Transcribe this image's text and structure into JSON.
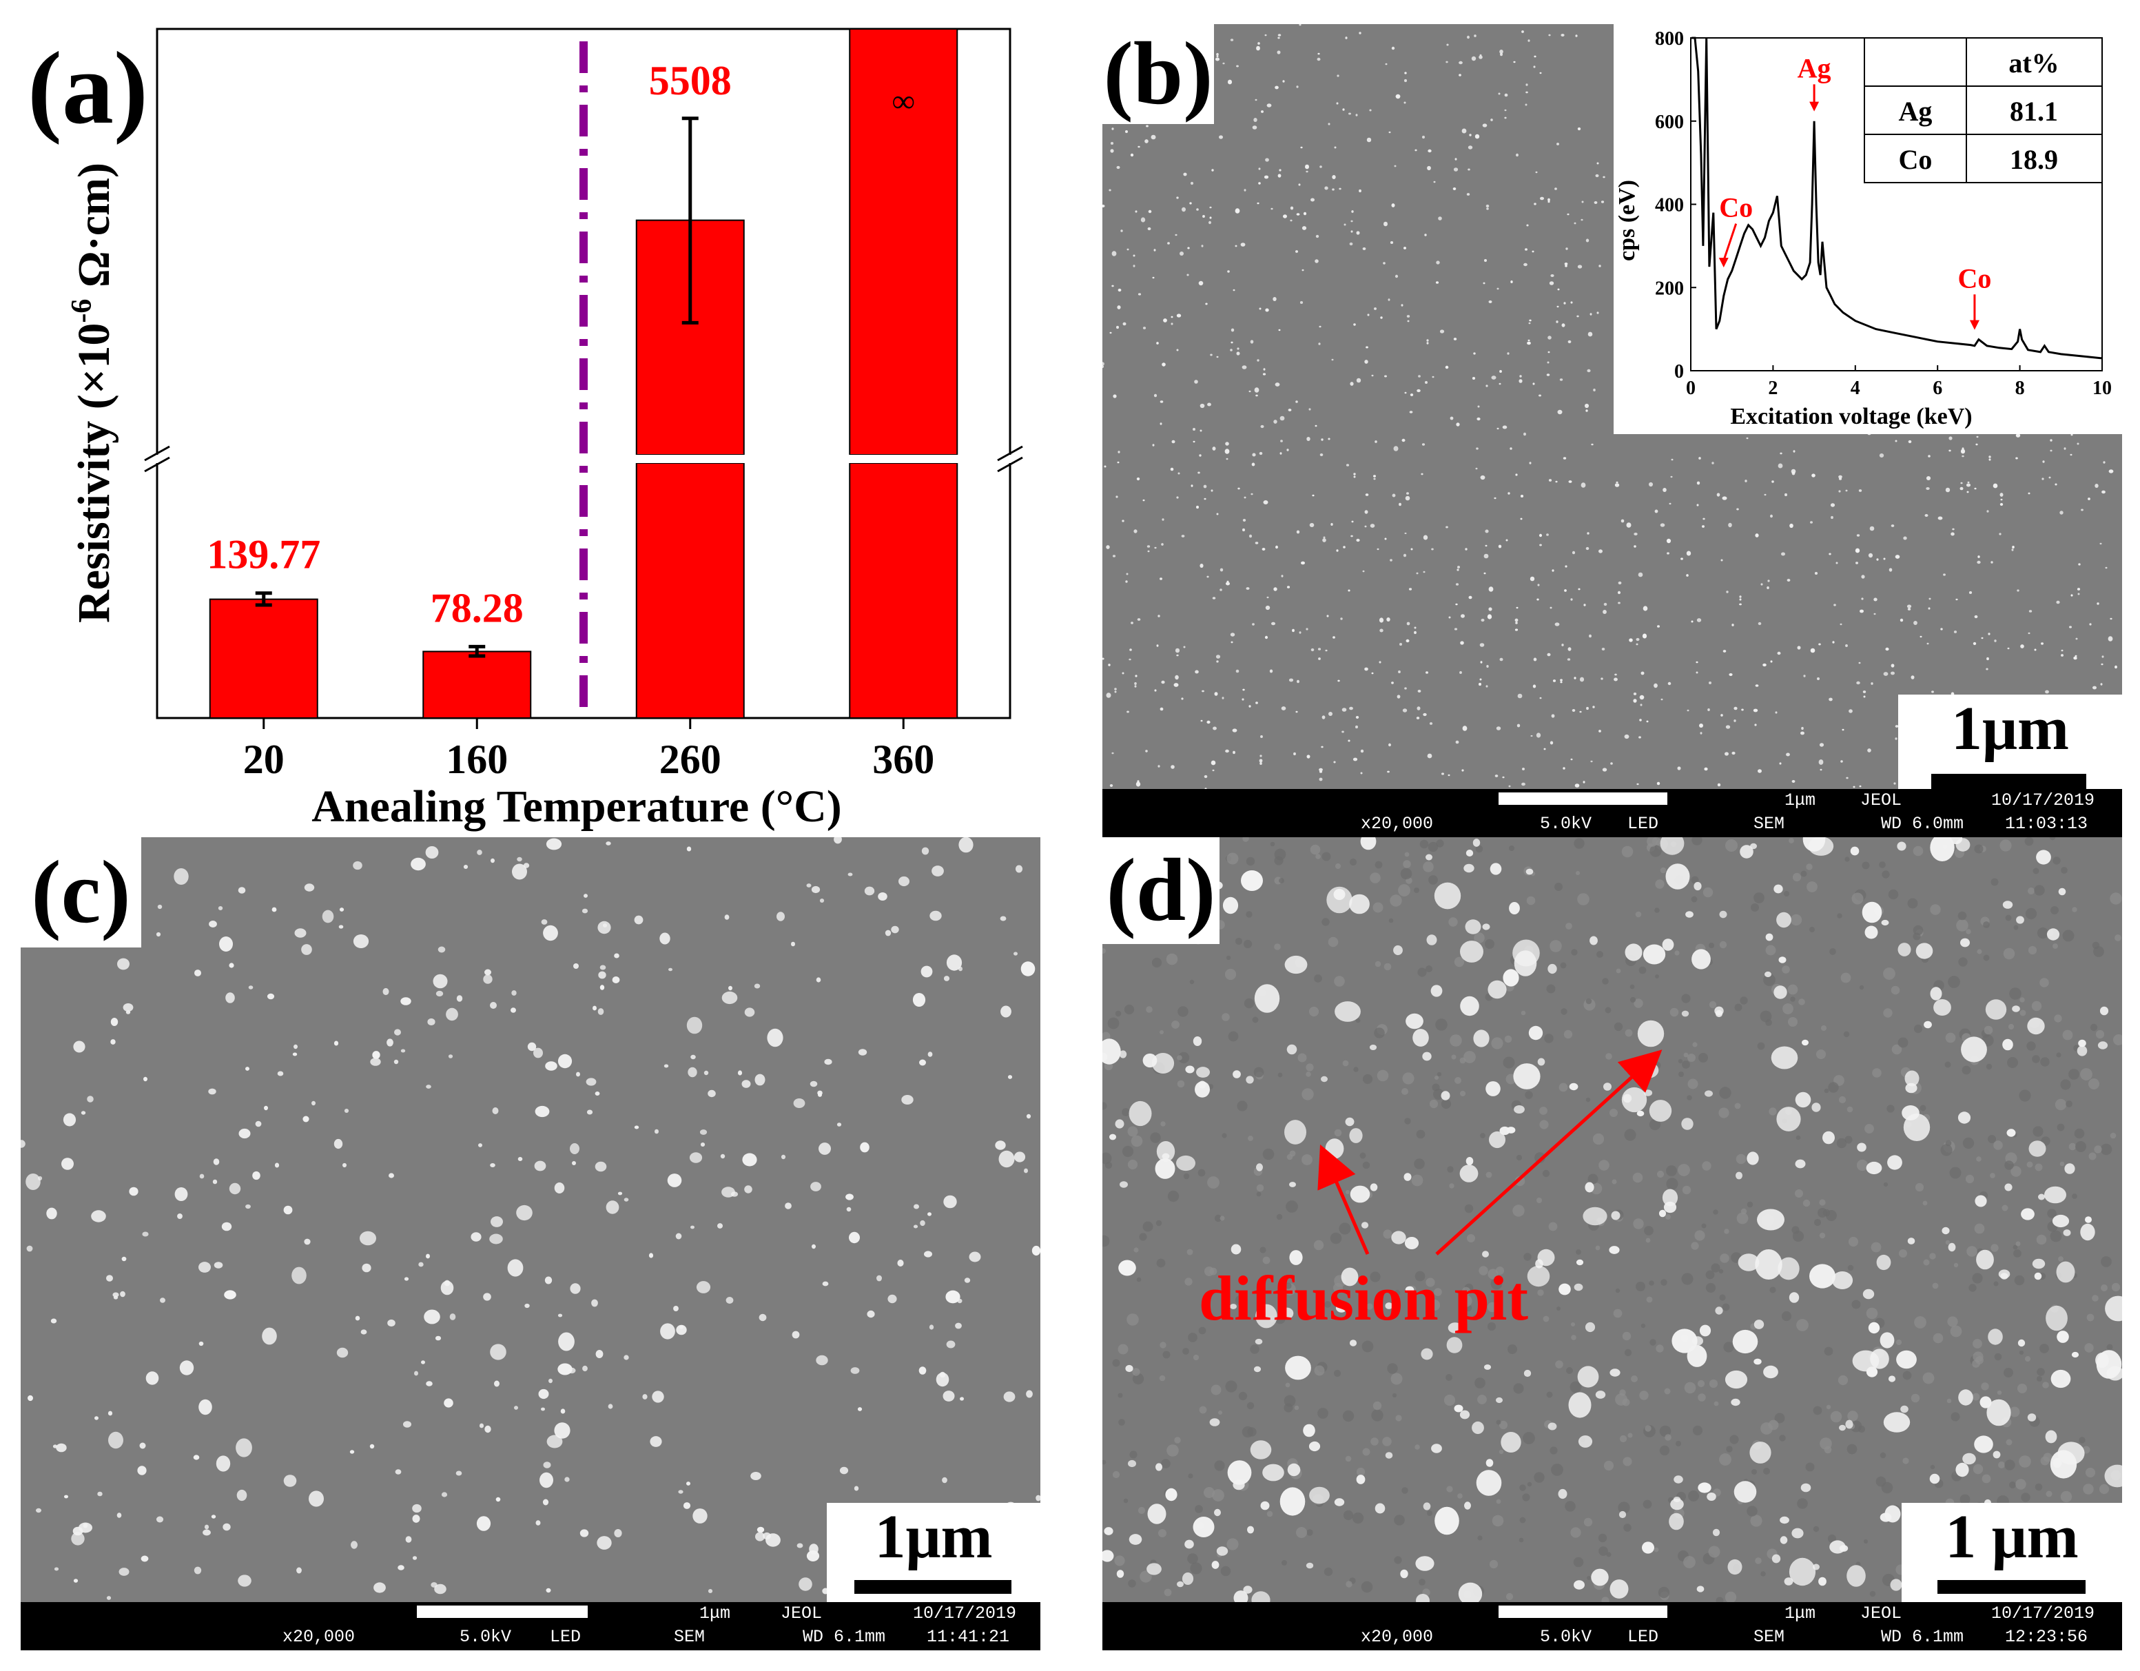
{
  "panel_a": {
    "label": "(a)",
    "chart_data": {
      "type": "bar",
      "title": "",
      "xlabel": "Anealing Temperature (°C)",
      "ylabel_main": "Resistivity (×10",
      "ylabel_exp": "-6",
      "ylabel_unit": " Ω·cm)",
      "categories": [
        "20",
        "160",
        "260",
        "360"
      ],
      "values": [
        139.77,
        78.28,
        5508,
        "∞"
      ],
      "error_low": [
        133,
        73,
        3100,
        null
      ],
      "error_high": [
        147,
        84,
        7900,
        null
      ],
      "data_labels": [
        "139.77",
        "78.28",
        "5508",
        "∞"
      ],
      "axis_break": true,
      "lower_ylim": [
        0,
        300
      ],
      "upper_ylim": [
        0,
        10000
      ],
      "bar_color": "#ff0000",
      "label_color": "#ff0000",
      "divider_color": "#8b0090",
      "divider_after_category": "160"
    }
  },
  "panel_b": {
    "label": "(b)",
    "scale": "1μm",
    "info": {
      "top_scale": "1μm",
      "maker": "JEOL",
      "date": "10/17/2019",
      "mag": "x20,000",
      "kv": "5.0kV",
      "detector": "LED",
      "mode": "SEM",
      "wd": "WD 6.0mm",
      "time": "11:03:13"
    },
    "inset": {
      "chart_data": {
        "type": "line",
        "xlabel": "Excitation voltage (keV)",
        "ylabel": "cps (eV)",
        "xlim": [
          0,
          10
        ],
        "ylim": [
          0,
          800
        ],
        "xticks": [
          "0",
          "2",
          "4",
          "6",
          "8",
          "10"
        ],
        "yticks": [
          "0",
          "200",
          "400",
          "600",
          "800"
        ],
        "x": [
          0.02,
          0.1,
          0.18,
          0.25,
          0.3,
          0.38,
          0.45,
          0.55,
          0.62,
          0.7,
          0.8,
          0.9,
          1.0,
          1.1,
          1.2,
          1.3,
          1.4,
          1.5,
          1.6,
          1.7,
          1.8,
          1.9,
          2.0,
          2.1,
          2.15,
          2.2,
          2.3,
          2.4,
          2.5,
          2.6,
          2.7,
          2.8,
          2.9,
          2.95,
          3.0,
          3.05,
          3.1,
          3.15,
          3.2,
          3.3,
          3.4,
          3.5,
          3.6,
          3.7,
          4.0,
          4.5,
          5.0,
          5.5,
          6.0,
          6.5,
          6.8,
          6.9,
          7.0,
          7.2,
          7.5,
          7.8,
          7.95,
          8.0,
          8.05,
          8.2,
          8.5,
          8.6,
          8.7,
          9.0,
          9.5,
          10.0
        ],
        "y": [
          800,
          800,
          720,
          520,
          300,
          800,
          250,
          380,
          100,
          120,
          180,
          220,
          240,
          270,
          300,
          330,
          350,
          340,
          320,
          300,
          320,
          360,
          380,
          420,
          360,
          300,
          280,
          260,
          240,
          230,
          220,
          230,
          260,
          400,
          600,
          400,
          260,
          230,
          310,
          200,
          180,
          160,
          150,
          140,
          120,
          100,
          90,
          80,
          70,
          65,
          62,
          60,
          75,
          60,
          55,
          52,
          70,
          100,
          75,
          50,
          45,
          60,
          45,
          40,
          35,
          30
        ],
        "annotations": [
          "Ag",
          "Co",
          "Co"
        ],
        "line_color": "#000000",
        "annotation_color": "#ff0000"
      },
      "table": {
        "header": [
          "",
          "at%"
        ],
        "rows": [
          [
            "Ag",
            "81.1"
          ],
          [
            "Co",
            "18.9"
          ]
        ]
      }
    }
  },
  "panel_c": {
    "label": "(c)",
    "scale": "1μm",
    "info": {
      "top_scale": "1μm",
      "maker": "JEOL",
      "date": "10/17/2019",
      "mag": "x20,000",
      "kv": "5.0kV",
      "detector": "LED",
      "mode": "SEM",
      "wd": "WD 6.1mm",
      "time": "11:41:21"
    }
  },
  "panel_d": {
    "label": "(d)",
    "scale": "1 μm",
    "annotation": "diffusion pit",
    "annotation_color": "#ff0000",
    "info": {
      "top_scale": "1μm",
      "maker": "JEOL",
      "date": "10/17/2019",
      "mag": "x20,000",
      "kv": "5.0kV",
      "detector": "LED",
      "mode": "SEM",
      "wd": "WD 6.1mm",
      "time": "12:23:56"
    }
  }
}
